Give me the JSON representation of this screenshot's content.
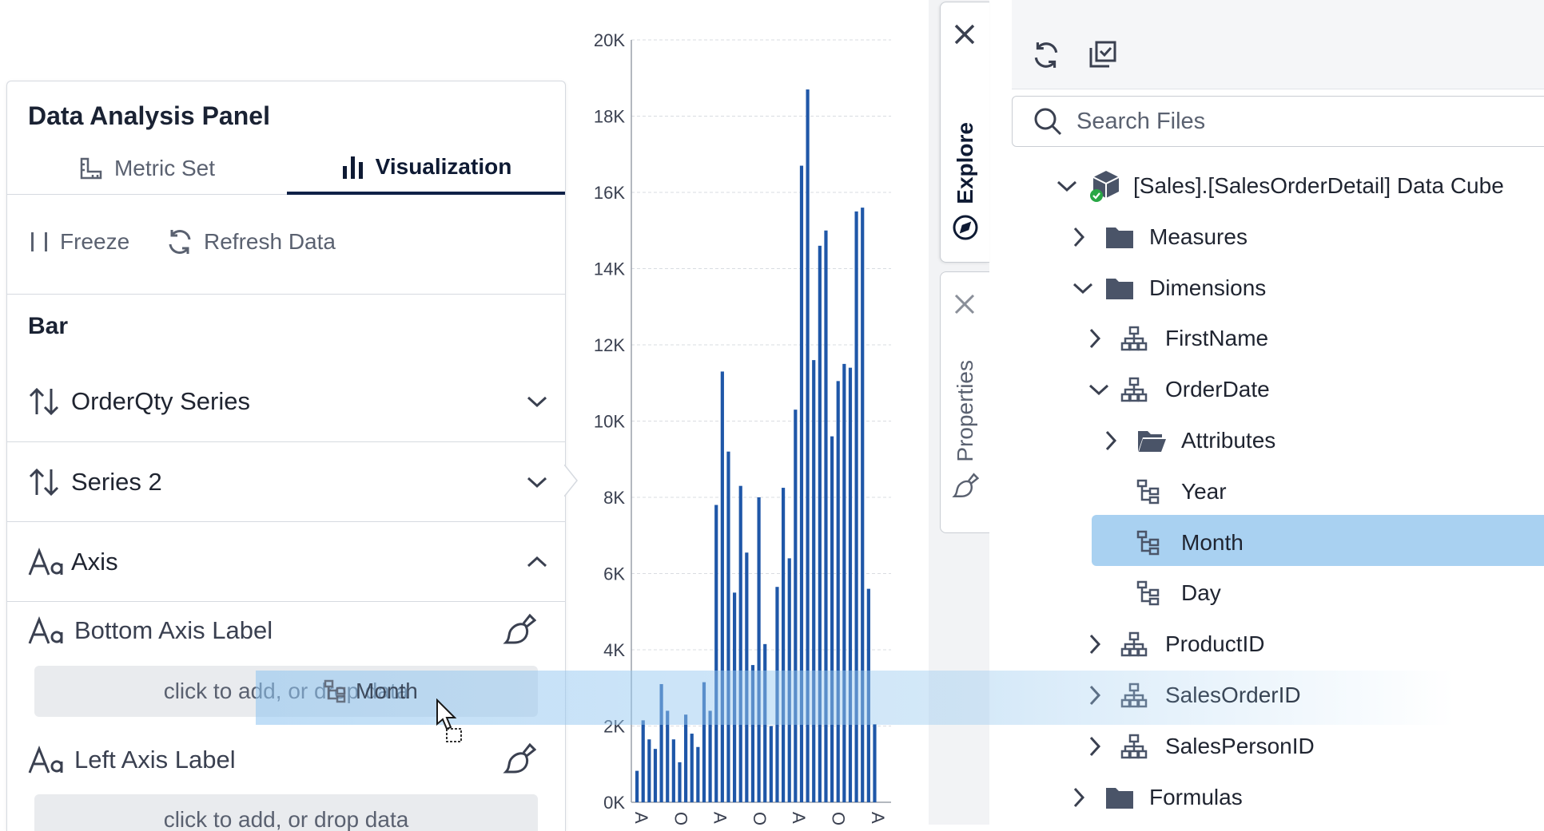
{
  "panel": {
    "title": "Data Analysis Panel",
    "tabs": [
      {
        "label": "Metric Set"
      },
      {
        "label": "Visualization"
      }
    ],
    "toolbar": {
      "freeze": "Freeze",
      "refresh": "Refresh Data"
    },
    "section": "Bar",
    "rows": [
      {
        "label": "OrderQty Series"
      },
      {
        "label": "Series 2"
      },
      {
        "label": "Axis"
      }
    ],
    "axis_items": [
      {
        "label": "Bottom Axis Label",
        "dropzone": "click to add, or drop data"
      },
      {
        "label": "Left Axis Label",
        "dropzone": "click to add, or drop data"
      }
    ]
  },
  "drag": {
    "label": "Month"
  },
  "chart_data": {
    "type": "bar",
    "ylim": [
      0,
      20000
    ],
    "yticks": [
      "0K",
      "2K",
      "4K",
      "6K",
      "8K",
      "10K",
      "12K",
      "14K",
      "16K",
      "18K",
      "20K"
    ],
    "xticks": [
      "Ap",
      "O",
      "Ap",
      "O",
      "Ap",
      "O",
      "Ap"
    ],
    "values": [
      825,
      2150,
      1650,
      1400,
      3100,
      2400,
      1650,
      1050,
      2300,
      1800,
      1450,
      3150,
      2400,
      7800,
      11300,
      9200,
      5500,
      8300,
      6550,
      3600,
      8000,
      4150,
      2000,
      5650,
      8250,
      6400,
      10300,
      16700,
      18700,
      11600,
      14600,
      15000,
      9600,
      11050,
      11500,
      11400,
      15500,
      15600,
      5600,
      2050
    ],
    "color": "#1f57a8"
  },
  "side_tabs": [
    {
      "label": "Explore"
    },
    {
      "label": "Properties"
    }
  ],
  "explorer": {
    "search_placeholder": "Search Files",
    "tree": [
      {
        "label": "[Sales].[SalesOrderDetail] Data Cube",
        "icon": "cube-icon",
        "chevron": "down"
      },
      {
        "label": "Measures",
        "icon": "folder-icon",
        "chevron": "right"
      },
      {
        "label": "Dimensions",
        "icon": "folder-icon",
        "chevron": "down"
      },
      {
        "label": "FirstName",
        "icon": "hierarchy-icon",
        "chevron": "right"
      },
      {
        "label": "OrderDate",
        "icon": "hierarchy-icon",
        "chevron": "down"
      },
      {
        "label": "Attributes",
        "icon": "open-folder-icon",
        "chevron": "right"
      },
      {
        "label": "Year",
        "icon": "level-icon",
        "chevron": "none"
      },
      {
        "label": "Month",
        "icon": "level-icon",
        "chevron": "none",
        "selected": true
      },
      {
        "label": "Day",
        "icon": "level-icon",
        "chevron": "none"
      },
      {
        "label": "ProductID",
        "icon": "hierarchy-icon",
        "chevron": "right"
      },
      {
        "label": "SalesOrderID",
        "icon": "hierarchy-icon",
        "chevron": "right"
      },
      {
        "label": "SalesPersonID",
        "icon": "hierarchy-icon",
        "chevron": "right"
      },
      {
        "label": "Formulas",
        "icon": "folder-icon",
        "chevron": "right"
      }
    ]
  },
  "colors": {
    "accent": "#0f2147",
    "selection": "#a9d1f1",
    "bar": "#1f57a8"
  }
}
